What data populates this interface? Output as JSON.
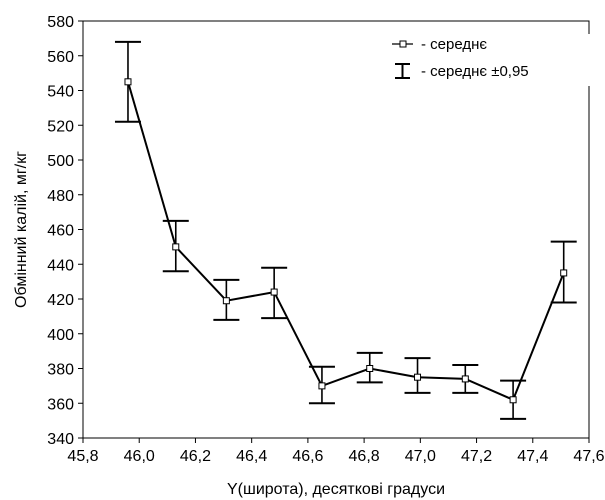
{
  "chart_data": {
    "type": "line",
    "xlabel": "Y(широта), десяткові градуси",
    "ylabel": "Обмінний калій, мг/кг",
    "xlim": [
      45.8,
      47.6
    ],
    "ylim": [
      340,
      580
    ],
    "x_ticks": [
      "45,8",
      "46,0",
      "46,2",
      "46,4",
      "46,6",
      "46,8",
      "47,0",
      "47,2",
      "47,4",
      "47,6"
    ],
    "x_tick_values": [
      45.8,
      46.0,
      46.2,
      46.4,
      46.6,
      46.8,
      47.0,
      47.2,
      47.4,
      47.6
    ],
    "y_ticks": [
      "340",
      "360",
      "380",
      "400",
      "420",
      "440",
      "460",
      "480",
      "500",
      "520",
      "540",
      "560",
      "580"
    ],
    "y_tick_values": [
      340,
      360,
      380,
      400,
      420,
      440,
      460,
      480,
      500,
      520,
      540,
      560,
      580
    ],
    "grid": false,
    "legend_position": "top-right",
    "legend": {
      "mean_label": "- середнє",
      "ci_label": "- середнє ±0,95"
    },
    "series": [
      {
        "name": "- середнє",
        "x": [
          45.96,
          46.13,
          46.31,
          46.48,
          46.65,
          46.82,
          46.99,
          47.16,
          47.33,
          47.51
        ],
        "y": [
          545,
          450,
          419,
          424,
          370,
          380,
          375,
          374,
          362,
          435
        ],
        "lower": [
          522,
          436,
          408,
          409,
          360,
          372,
          366,
          366,
          351,
          418
        ],
        "upper": [
          568,
          465,
          431,
          438,
          381,
          389,
          386,
          382,
          373,
          453
        ]
      }
    ]
  }
}
